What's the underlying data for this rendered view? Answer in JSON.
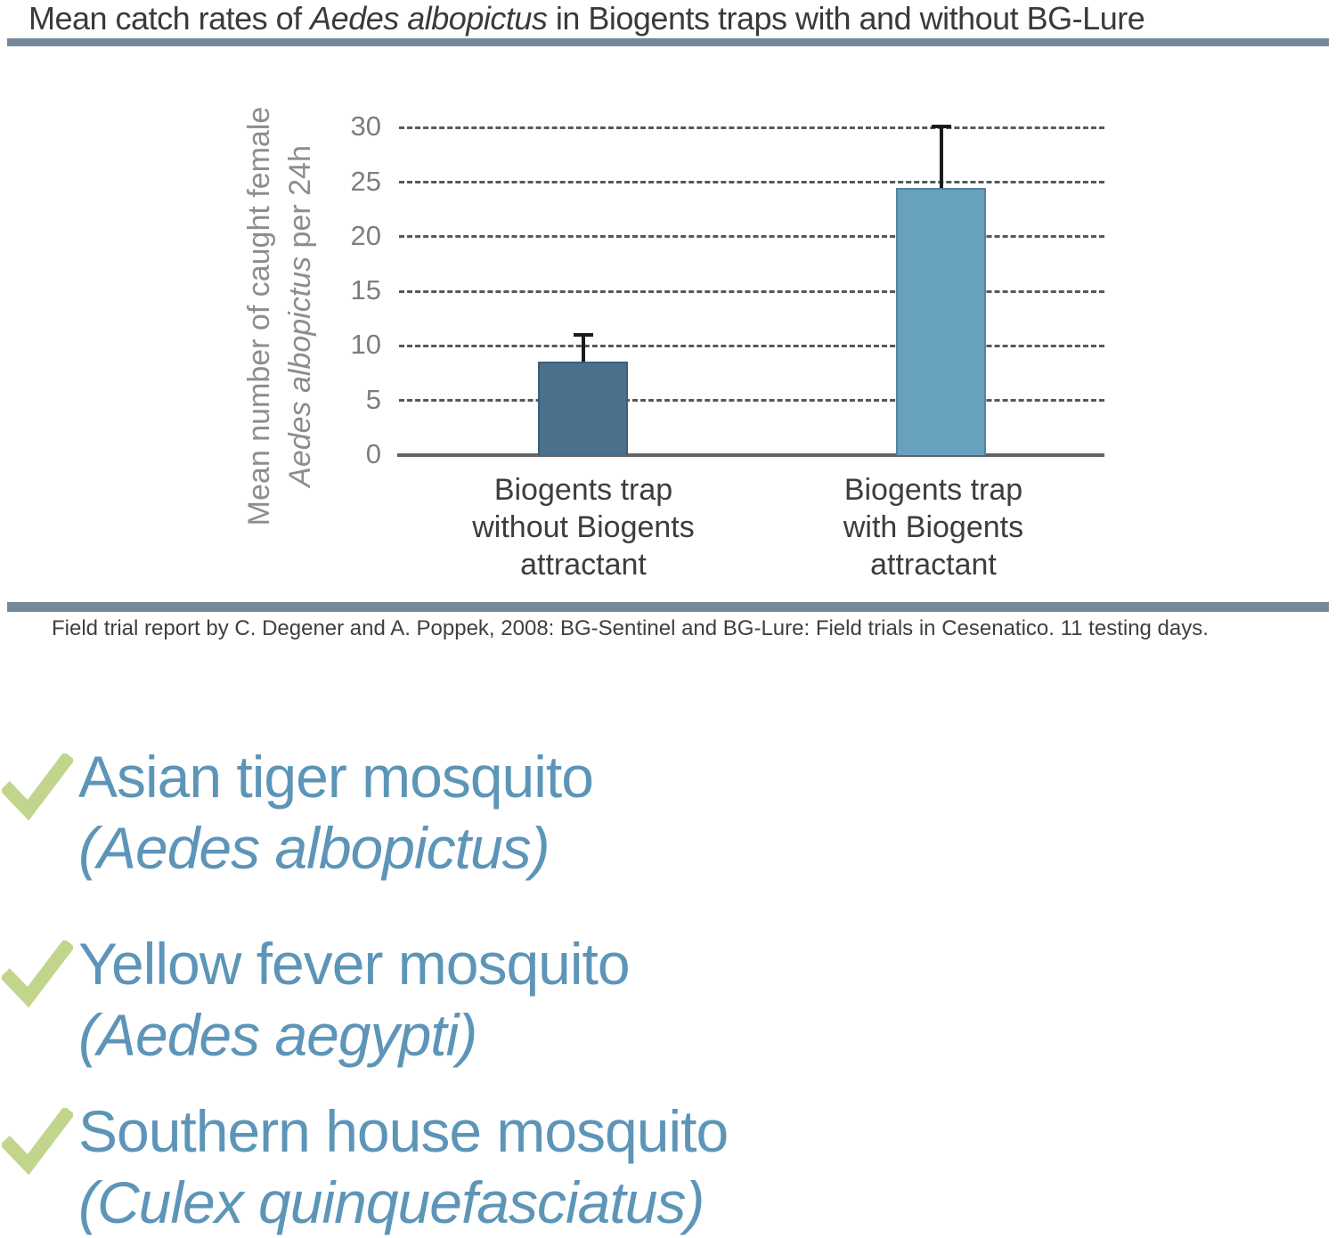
{
  "title": {
    "prefix": "Mean catch rates of ",
    "species": "Aedes albopictus",
    "suffix": " in Biogents traps with and without BG-Lure"
  },
  "chart_data": {
    "type": "bar",
    "title": "Mean catch rates of Aedes albopictus in Biogents traps with and without BG-Lure",
    "categories": [
      "Biogents trap\nwithout Biogents\nattractant",
      "Biogents trap\nwith Biogents\nattractant"
    ],
    "values": [
      8.6,
      24.5
    ],
    "error_upper": [
      2.6,
      5.8
    ],
    "bar_colors": [
      "#4a708c",
      "#68a1bc"
    ],
    "xlabel": "",
    "ylabel": "Mean number of caught female Aedes albopictus per 24h",
    "ylabel_line1": "Mean number of caught female",
    "ylabel_line2_italic": "Aedes albopictus",
    "ylabel_line2_rest": " per 24h",
    "yticks": [
      0,
      5,
      10,
      15,
      20,
      25,
      30
    ],
    "ylim": [
      0,
      30
    ],
    "grid": "horizontal-dashed",
    "legend": "none"
  },
  "caption": "Field trial report by C. Degener and A. Poppek, 2008: BG-Sentinel and BG-Lure: Field trials in Cesenatico. 11 testing days.",
  "checklist": {
    "items": [
      {
        "name": "Asian tiger mosquito",
        "latin": "(Aedes albopictus)"
      },
      {
        "name": "Yellow fever mosquito",
        "latin": "(Aedes aegypti)"
      },
      {
        "name": "Southern house mosquito",
        "latin": "(Culex quinquefasciatus)"
      }
    ]
  },
  "colors": {
    "divider": "#76899b",
    "bar_without_lure": "#4a708c",
    "bar_with_lure": "#68a1bc",
    "species_text_blue": "#5d95b8",
    "check_green": "#c2d58c",
    "axis_text_gray": "#7d7d7d",
    "label_text_dark": "#3d3d3d",
    "title_text_dark": "#3a3a3a"
  }
}
